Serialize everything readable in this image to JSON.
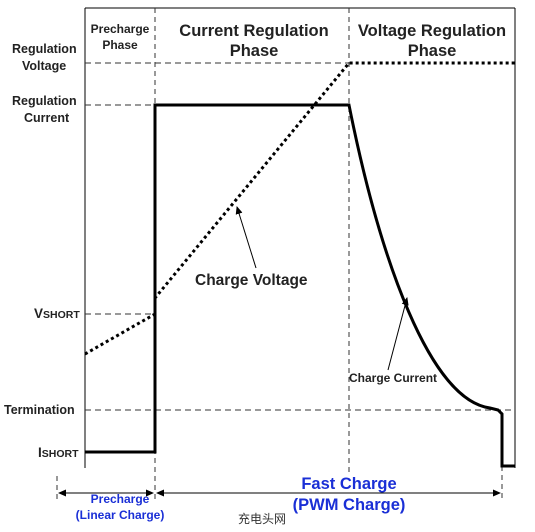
{
  "phases": {
    "precharge_line1": "Precharge",
    "precharge_line2": "Phase",
    "current_line1": "Current Regulation",
    "current_line2": "Phase",
    "voltage_line1": "Voltage Regulation",
    "voltage_line2": "Phase"
  },
  "y_labels": {
    "reg_voltage_line1": "Regulation",
    "reg_voltage_line2": "Voltage",
    "reg_current_line1": "Regulation",
    "reg_current_line2": "Current",
    "vshort_main": "V",
    "vshort_sub": "SHORT",
    "termination": "Termination",
    "ishort_main": "I",
    "ishort_sub": "SHORT"
  },
  "annotations": {
    "charge_voltage": "Charge Voltage",
    "charge_current": "Charge Current"
  },
  "bottom": {
    "precharge_line1": "Precharge",
    "precharge_line2": "(Linear Charge)",
    "fast_line1": "Fast Charge",
    "fast_line2": "(PWM Charge)"
  },
  "watermark": "充电头网",
  "colors": {
    "line": "#000000",
    "dashed": "#333333",
    "blue": "#1a2fd6",
    "text": "#222222"
  }
}
